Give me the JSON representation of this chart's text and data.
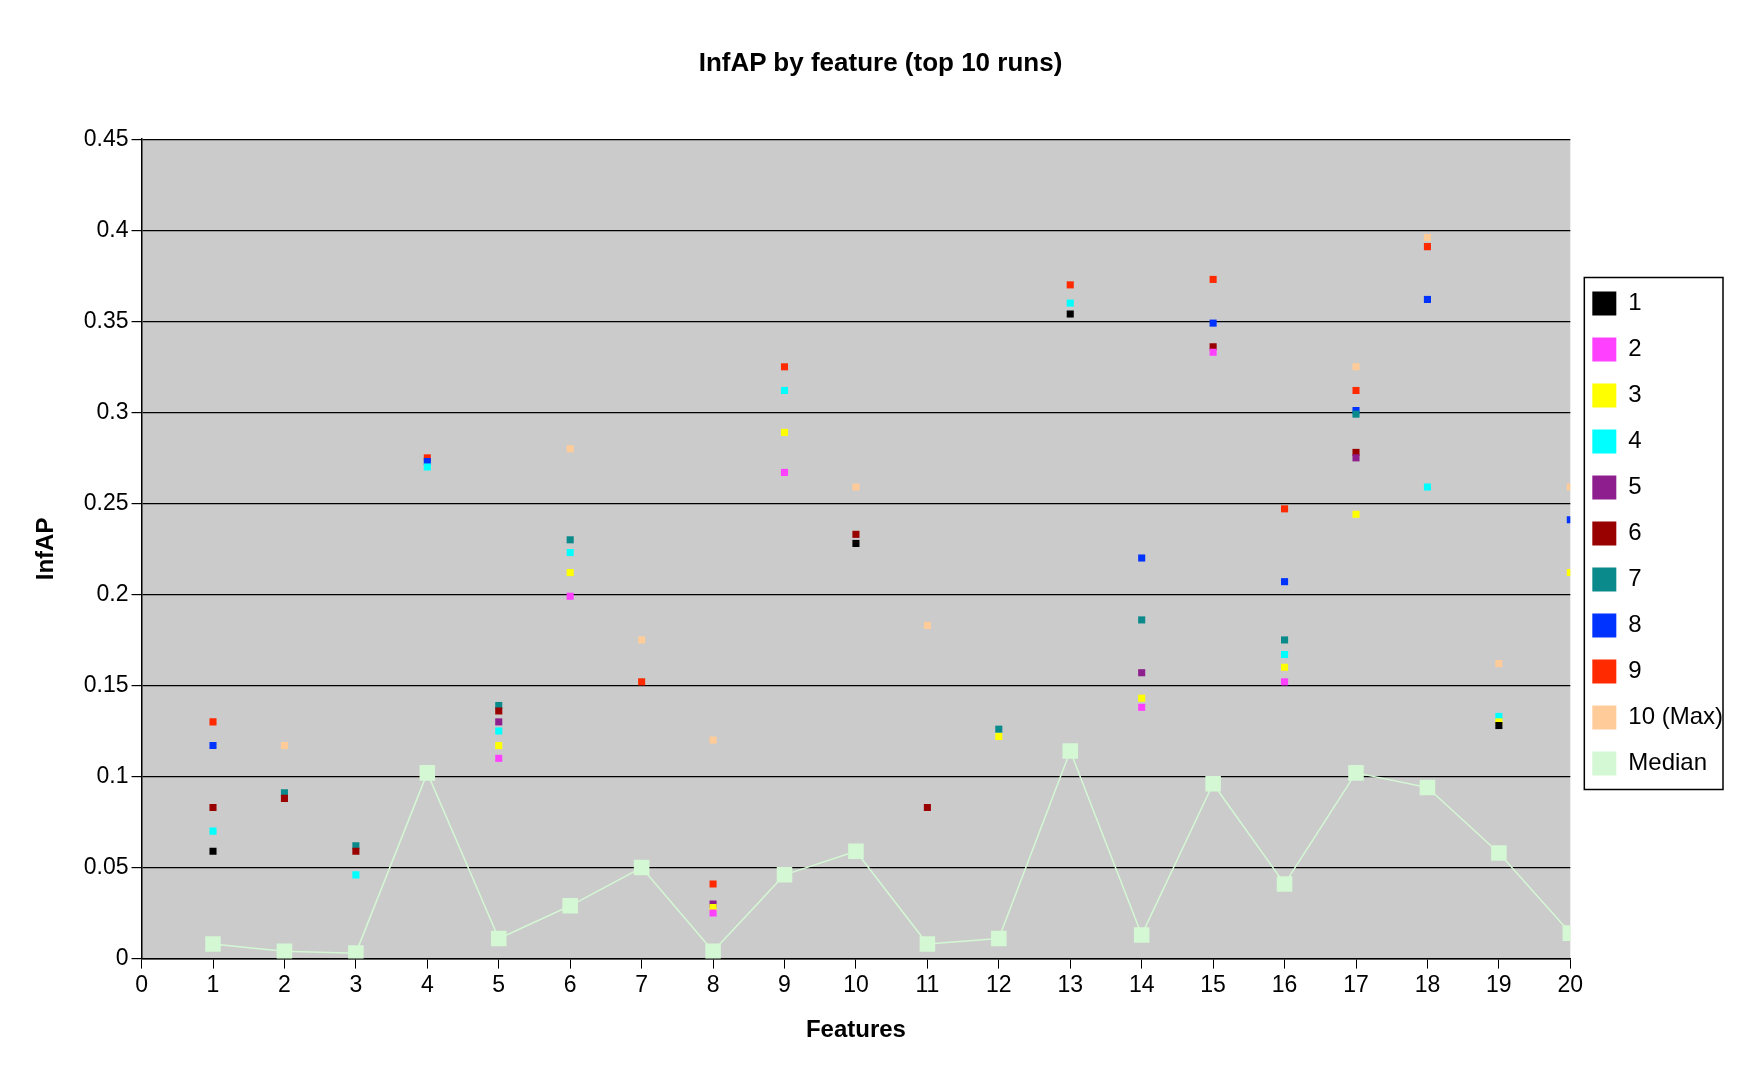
{
  "chart_data": {
    "type": "scatter",
    "title": "InfAP by feature (top 10 runs)",
    "xlabel": "Features",
    "ylabel": "InfAP",
    "x": [
      1,
      2,
      3,
      4,
      5,
      6,
      7,
      8,
      9,
      10,
      11,
      12,
      13,
      14,
      15,
      16,
      17,
      18,
      19,
      20
    ],
    "xlim": [
      0,
      20
    ],
    "xticks": [
      0,
      1,
      2,
      3,
      4,
      5,
      6,
      7,
      8,
      9,
      10,
      11,
      12,
      13,
      14,
      15,
      16,
      17,
      18,
      19,
      20
    ],
    "ylim": [
      0,
      0.45
    ],
    "yticks": [
      0,
      0.05,
      0.1,
      0.15,
      0.2,
      0.25,
      0.3,
      0.35,
      0.4,
      0.45
    ],
    "grid": "y",
    "legend": "right",
    "marker": "square",
    "series": [
      {
        "name": "1",
        "color": "#000000",
        "values": [
          0.059,
          null,
          null,
          null,
          null,
          null,
          null,
          null,
          null,
          0.228,
          null,
          null,
          0.354,
          null,
          null,
          null,
          null,
          null,
          0.128,
          null
        ]
      },
      {
        "name": "2",
        "color": "#ff40ff",
        "values": [
          null,
          null,
          null,
          null,
          0.11,
          0.199,
          null,
          0.025,
          0.267,
          null,
          null,
          null,
          null,
          0.138,
          0.333,
          0.152,
          null,
          null,
          null,
          null
        ]
      },
      {
        "name": "3",
        "color": "#ffff00",
        "values": [
          null,
          null,
          null,
          null,
          0.117,
          0.212,
          null,
          0.028,
          0.289,
          null,
          null,
          0.122,
          null,
          0.143,
          null,
          0.16,
          0.244,
          null,
          0.13,
          0.212
        ]
      },
      {
        "name": "4",
        "color": "#00ffff",
        "values": [
          0.07,
          null,
          0.046,
          0.27,
          0.125,
          0.223,
          null,
          null,
          0.312,
          null,
          null,
          null,
          0.36,
          null,
          null,
          0.167,
          null,
          0.259,
          0.133,
          null
        ]
      },
      {
        "name": "5",
        "color": "#8e1e8e",
        "values": [
          null,
          null,
          null,
          null,
          0.13,
          null,
          null,
          0.03,
          null,
          null,
          null,
          null,
          null,
          0.157,
          null,
          null,
          0.275,
          null,
          null,
          null
        ]
      },
      {
        "name": "6",
        "color": "#990000",
        "values": [
          0.083,
          0.088,
          0.059,
          null,
          0.136,
          null,
          null,
          null,
          null,
          0.233,
          0.083,
          null,
          null,
          null,
          0.336,
          null,
          0.278,
          null,
          null,
          null
        ]
      },
      {
        "name": "7",
        "color": "#0a8a8a",
        "values": [
          null,
          0.091,
          0.062,
          null,
          0.139,
          0.23,
          null,
          null,
          null,
          null,
          null,
          0.126,
          null,
          0.186,
          null,
          0.175,
          0.299,
          null,
          null,
          null
        ]
      },
      {
        "name": "8",
        "color": "#0033ff",
        "values": [
          0.117,
          null,
          null,
          0.273,
          null,
          null,
          null,
          null,
          null,
          null,
          null,
          null,
          null,
          0.22,
          0.349,
          0.207,
          0.301,
          0.362,
          null,
          0.241
        ]
      },
      {
        "name": "9",
        "color": "#ff2a00",
        "values": [
          0.13,
          null,
          null,
          0.275,
          null,
          null,
          0.152,
          0.041,
          0.325,
          null,
          null,
          null,
          0.37,
          null,
          0.373,
          0.247,
          0.312,
          0.391,
          null,
          null
        ]
      },
      {
        "name": "10 (Max)",
        "color": "#ffcc99",
        "values": [
          null,
          0.117,
          null,
          null,
          null,
          0.28,
          0.175,
          0.12,
          null,
          0.259,
          0.183,
          null,
          null,
          null,
          null,
          null,
          0.325,
          0.396,
          0.162,
          0.259
        ]
      },
      {
        "name": "Median",
        "type": "line",
        "marker": "square",
        "color": "#d4f7d4",
        "values": [
          0.008,
          0.004,
          0.003,
          0.102,
          0.011,
          0.029,
          0.05,
          0.004,
          0.046,
          0.059,
          0.008,
          0.011,
          0.114,
          0.013,
          0.096,
          0.041,
          0.102,
          0.094,
          0.058,
          0.014
        ]
      }
    ]
  }
}
